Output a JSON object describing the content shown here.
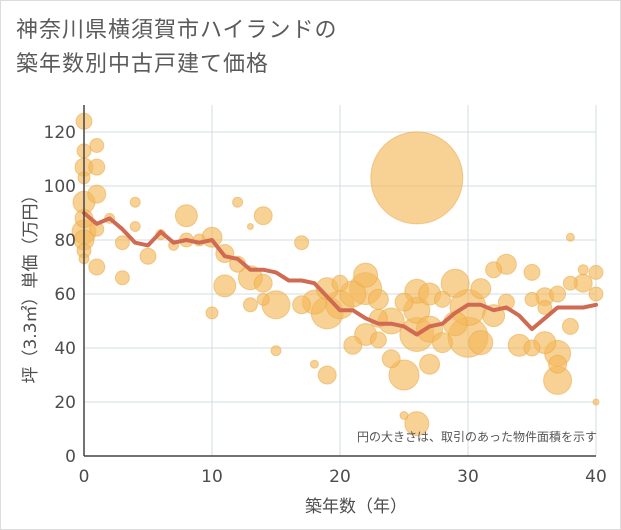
{
  "title_lines": [
    "神奈川県横須賀市ハイランドの",
    "築年数別中古戸建て価格"
  ],
  "note": "円の大きさは、取引のあった物件面積を示す",
  "colors": {
    "bubble": "#f5b95a",
    "bubble_stroke": "#e8a53e",
    "line": "#d06a52",
    "grid": "#d3dde3",
    "axis": "#444444"
  },
  "chart_data": {
    "type": "scatter",
    "title": "神奈川県横須賀市ハイランドの築年数別中古戸建て価格",
    "xlabel": "築年数（年）",
    "ylabel": "坪（3.3㎡）単価（万円）",
    "xlim": [
      0,
      40
    ],
    "ylim": [
      0,
      130
    ],
    "xticks": [
      0,
      10,
      20,
      30,
      40
    ],
    "yticks": [
      0,
      20,
      40,
      60,
      80,
      100,
      120
    ],
    "grid": true,
    "series": [
      {
        "kind": "bubble",
        "points": [
          {
            "x": 0,
            "y": 124,
            "s": 8
          },
          {
            "x": 0,
            "y": 113,
            "s": 7
          },
          {
            "x": 0,
            "y": 107,
            "s": 9
          },
          {
            "x": 0,
            "y": 103,
            "s": 6
          },
          {
            "x": 0,
            "y": 94,
            "s": 11
          },
          {
            "x": 0,
            "y": 88,
            "s": 9
          },
          {
            "x": 0,
            "y": 83,
            "s": 12
          },
          {
            "x": 0,
            "y": 80,
            "s": 10
          },
          {
            "x": 0,
            "y": 76,
            "s": 7
          },
          {
            "x": 0,
            "y": 73,
            "s": 5
          },
          {
            "x": 1,
            "y": 115,
            "s": 7
          },
          {
            "x": 1,
            "y": 107,
            "s": 8
          },
          {
            "x": 1,
            "y": 97,
            "s": 9
          },
          {
            "x": 1,
            "y": 84,
            "s": 7
          },
          {
            "x": 1,
            "y": 70,
            "s": 8
          },
          {
            "x": 2,
            "y": 88,
            "s": 5
          },
          {
            "x": 3,
            "y": 79,
            "s": 7
          },
          {
            "x": 3,
            "y": 66,
            "s": 7
          },
          {
            "x": 4,
            "y": 94,
            "s": 5
          },
          {
            "x": 4,
            "y": 85,
            "s": 5
          },
          {
            "x": 5,
            "y": 74,
            "s": 8
          },
          {
            "x": 6,
            "y": 82,
            "s": 5
          },
          {
            "x": 7,
            "y": 78,
            "s": 5
          },
          {
            "x": 8,
            "y": 89,
            "s": 11
          },
          {
            "x": 8,
            "y": 80,
            "s": 7
          },
          {
            "x": 9,
            "y": 80,
            "s": 6
          },
          {
            "x": 10,
            "y": 81,
            "s": 10
          },
          {
            "x": 10,
            "y": 53,
            "s": 6
          },
          {
            "x": 11,
            "y": 75,
            "s": 9
          },
          {
            "x": 11,
            "y": 63,
            "s": 11
          },
          {
            "x": 12,
            "y": 94,
            "s": 5
          },
          {
            "x": 12,
            "y": 71,
            "s": 8
          },
          {
            "x": 13,
            "y": 85,
            "s": 3
          },
          {
            "x": 13,
            "y": 66,
            "s": 12
          },
          {
            "x": 13,
            "y": 56,
            "s": 7
          },
          {
            "x": 14,
            "y": 89,
            "s": 9
          },
          {
            "x": 14,
            "y": 64,
            "s": 9
          },
          {
            "x": 14,
            "y": 58,
            "s": 6
          },
          {
            "x": 15,
            "y": 56,
            "s": 14
          },
          {
            "x": 15,
            "y": 39,
            "s": 5
          },
          {
            "x": 17,
            "y": 79,
            "s": 7
          },
          {
            "x": 17,
            "y": 56,
            "s": 9
          },
          {
            "x": 18,
            "y": 34,
            "s": 4
          },
          {
            "x": 18,
            "y": 57,
            "s": 12
          },
          {
            "x": 19,
            "y": 62,
            "s": 11
          },
          {
            "x": 19,
            "y": 53,
            "s": 16
          },
          {
            "x": 19,
            "y": 30,
            "s": 9
          },
          {
            "x": 20,
            "y": 64,
            "s": 8
          },
          {
            "x": 20,
            "y": 56,
            "s": 14
          },
          {
            "x": 21,
            "y": 60,
            "s": 13
          },
          {
            "x": 21,
            "y": 41,
            "s": 9
          },
          {
            "x": 22,
            "y": 67,
            "s": 12
          },
          {
            "x": 22,
            "y": 62,
            "s": 16
          },
          {
            "x": 22,
            "y": 45,
            "s": 11
          },
          {
            "x": 23,
            "y": 58,
            "s": 10
          },
          {
            "x": 23,
            "y": 51,
            "s": 9
          },
          {
            "x": 23,
            "y": 43,
            "s": 8
          },
          {
            "x": 24,
            "y": 50,
            "s": 13
          },
          {
            "x": 24,
            "y": 36,
            "s": 9
          },
          {
            "x": 25,
            "y": 57,
            "s": 9
          },
          {
            "x": 25,
            "y": 30,
            "s": 15
          },
          {
            "x": 25,
            "y": 15,
            "s": 4
          },
          {
            "x": 26,
            "y": 103,
            "s": 46
          },
          {
            "x": 26,
            "y": 61,
            "s": 12
          },
          {
            "x": 26,
            "y": 54,
            "s": 13
          },
          {
            "x": 26,
            "y": 45,
            "s": 17
          },
          {
            "x": 26,
            "y": 12,
            "s": 12
          },
          {
            "x": 27,
            "y": 60,
            "s": 11
          },
          {
            "x": 27,
            "y": 47,
            "s": 13
          },
          {
            "x": 27,
            "y": 34,
            "s": 10
          },
          {
            "x": 28,
            "y": 58,
            "s": 8
          },
          {
            "x": 28,
            "y": 42,
            "s": 10
          },
          {
            "x": 29,
            "y": 64,
            "s": 14
          },
          {
            "x": 29,
            "y": 49,
            "s": 12
          },
          {
            "x": 30,
            "y": 55,
            "s": 18
          },
          {
            "x": 30,
            "y": 44,
            "s": 20
          },
          {
            "x": 31,
            "y": 62,
            "s": 10
          },
          {
            "x": 31,
            "y": 42,
            "s": 12
          },
          {
            "x": 32,
            "y": 69,
            "s": 8
          },
          {
            "x": 32,
            "y": 52,
            "s": 11
          },
          {
            "x": 33,
            "y": 71,
            "s": 10
          },
          {
            "x": 33,
            "y": 57,
            "s": 8
          },
          {
            "x": 34,
            "y": 41,
            "s": 11
          },
          {
            "x": 35,
            "y": 68,
            "s": 8
          },
          {
            "x": 35,
            "y": 58,
            "s": 7
          },
          {
            "x": 35,
            "y": 40,
            "s": 8
          },
          {
            "x": 36,
            "y": 59,
            "s": 9
          },
          {
            "x": 36,
            "y": 55,
            "s": 7
          },
          {
            "x": 36,
            "y": 42,
            "s": 11
          },
          {
            "x": 37,
            "y": 60,
            "s": 8
          },
          {
            "x": 37,
            "y": 38,
            "s": 13
          },
          {
            "x": 37,
            "y": 34,
            "s": 9
          },
          {
            "x": 37,
            "y": 28,
            "s": 14
          },
          {
            "x": 38,
            "y": 81,
            "s": 4
          },
          {
            "x": 38,
            "y": 64,
            "s": 7
          },
          {
            "x": 38,
            "y": 48,
            "s": 8
          },
          {
            "x": 39,
            "y": 69,
            "s": 5
          },
          {
            "x": 39,
            "y": 64,
            "s": 9
          },
          {
            "x": 40,
            "y": 68,
            "s": 7
          },
          {
            "x": 40,
            "y": 60,
            "s": 7
          },
          {
            "x": 40,
            "y": 20,
            "s": 3
          }
        ]
      },
      {
        "kind": "line",
        "x": [
          0,
          1,
          2,
          3,
          4,
          5,
          6,
          7,
          8,
          9,
          10,
          11,
          12,
          13,
          14,
          15,
          16,
          17,
          18,
          19,
          20,
          21,
          22,
          23,
          24,
          25,
          26,
          27,
          28,
          29,
          30,
          31,
          32,
          33,
          34,
          35,
          36,
          37,
          38,
          39,
          40
        ],
        "values": [
          90,
          86,
          88,
          84,
          79,
          78,
          83,
          79,
          80,
          79,
          80,
          74,
          73,
          69,
          69,
          68,
          65,
          65,
          64,
          59,
          54,
          54,
          51,
          49,
          49,
          48,
          45,
          48,
          49,
          53,
          56,
          56,
          54,
          55,
          52,
          47,
          51,
          55,
          55,
          55,
          56
        ]
      }
    ]
  }
}
